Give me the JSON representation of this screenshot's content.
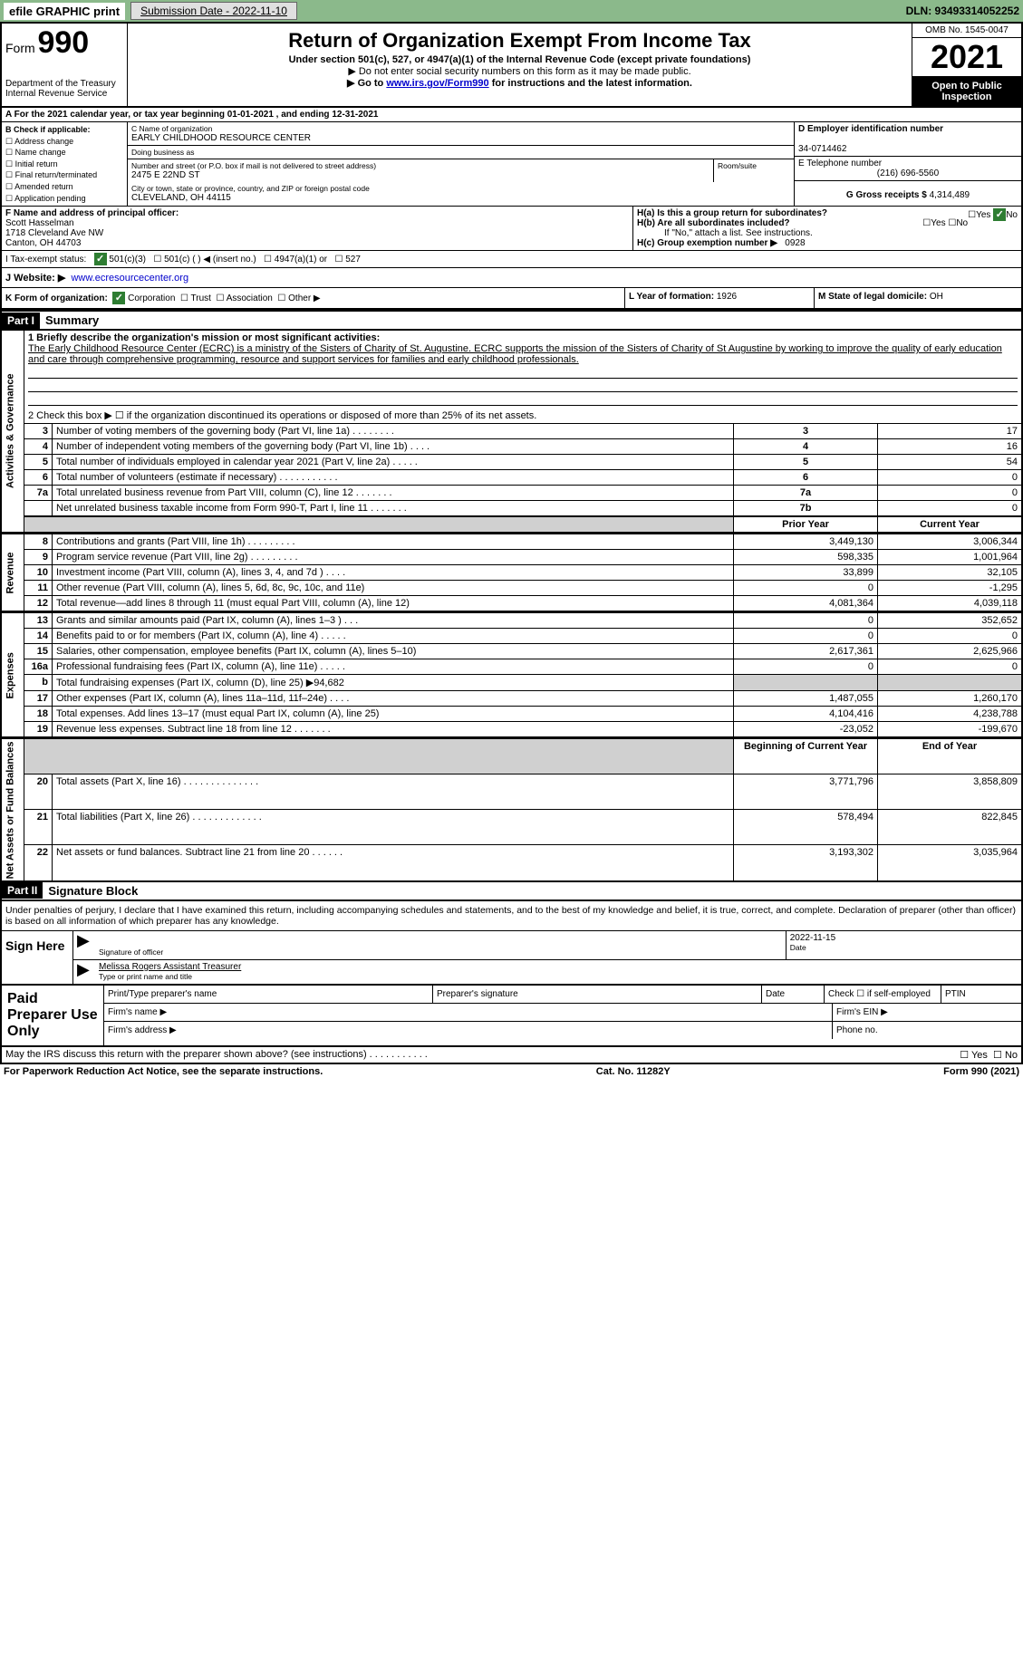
{
  "topbar": {
    "efile_label": "efile GRAPHIC print",
    "submission_btn": "Submission Date - 2022-11-10",
    "dln": "DLN: 93493314052252"
  },
  "header": {
    "form_word": "Form",
    "form_num": "990",
    "dept": "Department of the Treasury",
    "irs": "Internal Revenue Service",
    "title": "Return of Organization Exempt From Income Tax",
    "sub1": "Under section 501(c), 527, or 4947(a)(1) of the Internal Revenue Code (except private foundations)",
    "sub2": "▶ Do not enter social security numbers on this form as it may be made public.",
    "goto_prefix": "▶ Go to ",
    "goto_link": "www.irs.gov/Form990",
    "goto_suffix": " for instructions and the latest information.",
    "omb": "OMB No. 1545-0047",
    "year": "2021",
    "open_public": "Open to Public Inspection"
  },
  "row_a": "A For the 2021 calendar year, or tax year beginning 01-01-2021    , and ending 12-31-2021",
  "col_b": {
    "header": "B Check if applicable:",
    "items": [
      "Address change",
      "Name change",
      "Initial return",
      "Final return/terminated",
      "Amended return",
      "Application pending"
    ]
  },
  "col_c": {
    "name_label": "C Name of organization",
    "name": "EARLY CHILDHOOD RESOURCE CENTER",
    "dba_label": "Doing business as",
    "dba": "",
    "street_label": "Number and street (or P.O. box if mail is not delivered to street address)",
    "suite_label": "Room/suite",
    "street": "2475 E 22ND ST",
    "city_label": "City or town, state or province, country, and ZIP or foreign postal code",
    "city": "CLEVELAND, OH  44115"
  },
  "col_d": {
    "ein_label": "D Employer identification number",
    "ein": "34-0714462",
    "phone_label": "E Telephone number",
    "phone": "(216) 696-5560",
    "gross_label": "G Gross receipts $",
    "gross": "4,314,489"
  },
  "row_f": {
    "label": "F  Name and address of principal officer:",
    "name": "Scott Hasselman",
    "addr1": "1718 Cleveland Ave NW",
    "addr2": "Canton, OH  44703"
  },
  "row_h": {
    "a_label": "H(a)  Is this a group return for subordinates?",
    "a_yes": "Yes",
    "a_no": "No",
    "b_label": "H(b)  Are all subordinates included?",
    "b_yes": "Yes",
    "b_no": "No",
    "attach": "If \"No,\" attach a list. See instructions.",
    "c_label": "H(c)  Group exemption number ▶",
    "c_val": "0928"
  },
  "row_i": {
    "label": "I   Tax-exempt status:",
    "opt1": "501(c)(3)",
    "opt2": "501(c) (  ) ◀ (insert no.)",
    "opt3": "4947(a)(1) or",
    "opt4": "527"
  },
  "row_j": {
    "label": "J   Website: ▶",
    "url": "www.ecresourcecenter.org"
  },
  "row_k": {
    "label": "K Form of organization:",
    "opts": [
      "Corporation",
      "Trust",
      "Association",
      "Other ▶"
    ]
  },
  "row_l": {
    "label": "L Year of formation:",
    "val": "1926"
  },
  "row_m": {
    "label": "M State of legal domicile:",
    "val": "OH"
  },
  "part1": {
    "header": "Part I",
    "title": "Summary",
    "q1_label": "1  Briefly describe the organization's mission or most significant activities:",
    "q1_text": "The Early Childhood Resource Center (ECRC) is a ministry of the Sisters of Charity of St. Augustine. ECRC supports the mission of the Sisters of Charity of St Augustine by working to improve the quality of early education and care through comprehensive programming, resource and support services for families and early childhood professionals.",
    "q2": "2   Check this box ▶ ☐  if the organization discontinued its operations or disposed of more than 25% of its net assets.",
    "sidelabel_gov": "Activities & Governance",
    "sidelabel_rev": "Revenue",
    "sidelabel_exp": "Expenses",
    "sidelabel_net": "Net Assets or Fund Balances",
    "gov_rows": [
      {
        "n": "3",
        "desc": "Number of voting members of the governing body (Part VI, line 1a)  .    .    .    .    .    .    .    .",
        "box": "3",
        "val": "17"
      },
      {
        "n": "4",
        "desc": "Number of independent voting members of the governing body (Part VI, line 1b)   .    .    .    .",
        "box": "4",
        "val": "16"
      },
      {
        "n": "5",
        "desc": "Total number of individuals employed in calendar year 2021 (Part V, line 2a)   .    .    .    .    .",
        "box": "5",
        "val": "54"
      },
      {
        "n": "6",
        "desc": "Total number of volunteers (estimate if necessary)    .    .    .    .    .    .    .    .    .    .    .",
        "box": "6",
        "val": "0"
      },
      {
        "n": "7a",
        "desc": "Total unrelated business revenue from Part VIII, column (C), line 12   .    .    .    .    .    .    .",
        "box": "7a",
        "val": "0"
      },
      {
        "n": "",
        "desc": "Net unrelated business taxable income from Form 990-T, Part I, line 11   .    .    .    .    .    .    .",
        "box": "7b",
        "val": "0"
      }
    ],
    "pyear_header": "Prior Year",
    "cyear_header": "Current Year",
    "rev_rows": [
      {
        "n": "8",
        "desc": "Contributions and grants (Part VIII, line 1h)   .    .    .    .    .    .    .    .    .",
        "py": "3,449,130",
        "cy": "3,006,344"
      },
      {
        "n": "9",
        "desc": "Program service revenue (Part VIII, line 2g)   .    .    .    .    .    .    .    .    .",
        "py": "598,335",
        "cy": "1,001,964"
      },
      {
        "n": "10",
        "desc": "Investment income (Part VIII, column (A), lines 3, 4, and 7d )    .    .    .    .",
        "py": "33,899",
        "cy": "32,105"
      },
      {
        "n": "11",
        "desc": "Other revenue (Part VIII, column (A), lines 5, 6d, 8c, 9c, 10c, and 11e)",
        "py": "0",
        "cy": "-1,295"
      },
      {
        "n": "12",
        "desc": "Total revenue—add lines 8 through 11 (must equal Part VIII, column (A), line 12)",
        "py": "4,081,364",
        "cy": "4,039,118"
      }
    ],
    "exp_rows": [
      {
        "n": "13",
        "desc": "Grants and similar amounts paid (Part IX, column (A), lines 1–3 )    .    .    .",
        "py": "0",
        "cy": "352,652"
      },
      {
        "n": "14",
        "desc": "Benefits paid to or for members (Part IX, column (A), line 4)   .    .    .    .    .",
        "py": "0",
        "cy": "0"
      },
      {
        "n": "15",
        "desc": "Salaries, other compensation, employee benefits (Part IX, column (A), lines 5–10)",
        "py": "2,617,361",
        "cy": "2,625,966"
      },
      {
        "n": "16a",
        "desc": "Professional fundraising fees (Part IX, column (A), line 11e)    .    .    .    .    .",
        "py": "0",
        "cy": "0"
      },
      {
        "n": "b",
        "desc": "Total fundraising expenses (Part IX, column (D), line 25) ▶94,682",
        "py": "",
        "cy": "",
        "shaded": true
      },
      {
        "n": "17",
        "desc": "Other expenses (Part IX, column (A), lines 11a–11d, 11f–24e)   .    .    .    .",
        "py": "1,487,055",
        "cy": "1,260,170"
      },
      {
        "n": "18",
        "desc": "Total expenses. Add lines 13–17 (must equal Part IX, column (A), line 25)",
        "py": "4,104,416",
        "cy": "4,238,788"
      },
      {
        "n": "19",
        "desc": "Revenue less expenses. Subtract line 18 from line 12   .    .    .    .    .    .    .",
        "py": "-23,052",
        "cy": "-199,670"
      }
    ],
    "byear_header": "Beginning of Current Year",
    "eyear_header": "End of Year",
    "net_rows": [
      {
        "n": "20",
        "desc": "Total assets (Part X, line 16)   .    .    .    .    .    .    .    .    .    .    .    .    .    .",
        "py": "3,771,796",
        "cy": "3,858,809"
      },
      {
        "n": "21",
        "desc": "Total liabilities (Part X, line 26)   .    .    .    .    .    .    .    .    .    .    .    .    .",
        "py": "578,494",
        "cy": "822,845"
      },
      {
        "n": "22",
        "desc": "Net assets or fund balances. Subtract line 21 from line 20   .    .    .    .    .    .",
        "py": "3,193,302",
        "cy": "3,035,964"
      }
    ]
  },
  "part2": {
    "header": "Part II",
    "title": "Signature Block",
    "penalty": "Under penalties of perjury, I declare that I have examined this return, including accompanying schedules and statements, and to the best of my knowledge and belief, it is true, correct, and complete. Declaration of preparer (other than officer) is based on all information of which preparer has any knowledge.",
    "sign_here": "Sign Here",
    "sig_officer_label": "Signature of officer",
    "sig_date": "2022-11-15",
    "date_label": "Date",
    "typed_name": "Melissa Rogers  Assistant Treasurer",
    "typed_label": "Type or print name and title",
    "paid_title": "Paid Preparer Use Only",
    "prep_name_label": "Print/Type preparer's name",
    "prep_sig_label": "Preparer's signature",
    "prep_date_label": "Date",
    "self_emp": "Check ☐ if self-employed",
    "ptin_label": "PTIN",
    "firm_name_label": "Firm's name   ▶",
    "firm_ein_label": "Firm's EIN ▶",
    "firm_addr_label": "Firm's address ▶",
    "firm_phone_label": "Phone no.",
    "discuss": "May the IRS discuss this return with the preparer shown above? (see instructions)    .    .    .    .    .    .    .    .    .    .    .",
    "discuss_yes": "Yes",
    "discuss_no": "No"
  },
  "footer": {
    "paperwork": "For Paperwork Reduction Act Notice, see the separate instructions.",
    "cat": "Cat. No. 11282Y",
    "formnum": "Form 990 (2021)"
  },
  "colors": {
    "topbar_bg": "#8bb98b",
    "check_green": "#2e7d32",
    "link": "#0000cc",
    "shaded": "#d0d0d0"
  }
}
